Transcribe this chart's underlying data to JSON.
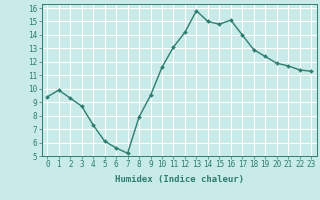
{
  "x": [
    0,
    1,
    2,
    3,
    4,
    5,
    6,
    7,
    8,
    9,
    10,
    11,
    12,
    13,
    14,
    15,
    16,
    17,
    18,
    19,
    20,
    21,
    22,
    23
  ],
  "y": [
    9.4,
    9.9,
    9.3,
    8.7,
    7.3,
    6.1,
    5.6,
    5.2,
    7.9,
    9.5,
    11.6,
    13.1,
    14.2,
    15.8,
    15.0,
    14.8,
    15.1,
    14.0,
    12.9,
    12.4,
    11.9,
    11.7,
    11.4,
    11.3
  ],
  "line_color": "#2e7d6e",
  "marker": "D",
  "marker_size": 2.0,
  "bg_color": "#c8eae8",
  "grid_color": "#ffffff",
  "xlabel": "Humidex (Indice chaleur)",
  "xlim": [
    -0.5,
    23.5
  ],
  "ylim": [
    5,
    16.3
  ],
  "yticks": [
    5,
    6,
    7,
    8,
    9,
    10,
    11,
    12,
    13,
    14,
    15,
    16
  ],
  "xticks": [
    0,
    1,
    2,
    3,
    4,
    5,
    6,
    7,
    8,
    9,
    10,
    11,
    12,
    13,
    14,
    15,
    16,
    17,
    18,
    19,
    20,
    21,
    22,
    23
  ],
  "xlabel_fontsize": 6.5,
  "tick_fontsize": 5.5,
  "linewidth": 1.0
}
